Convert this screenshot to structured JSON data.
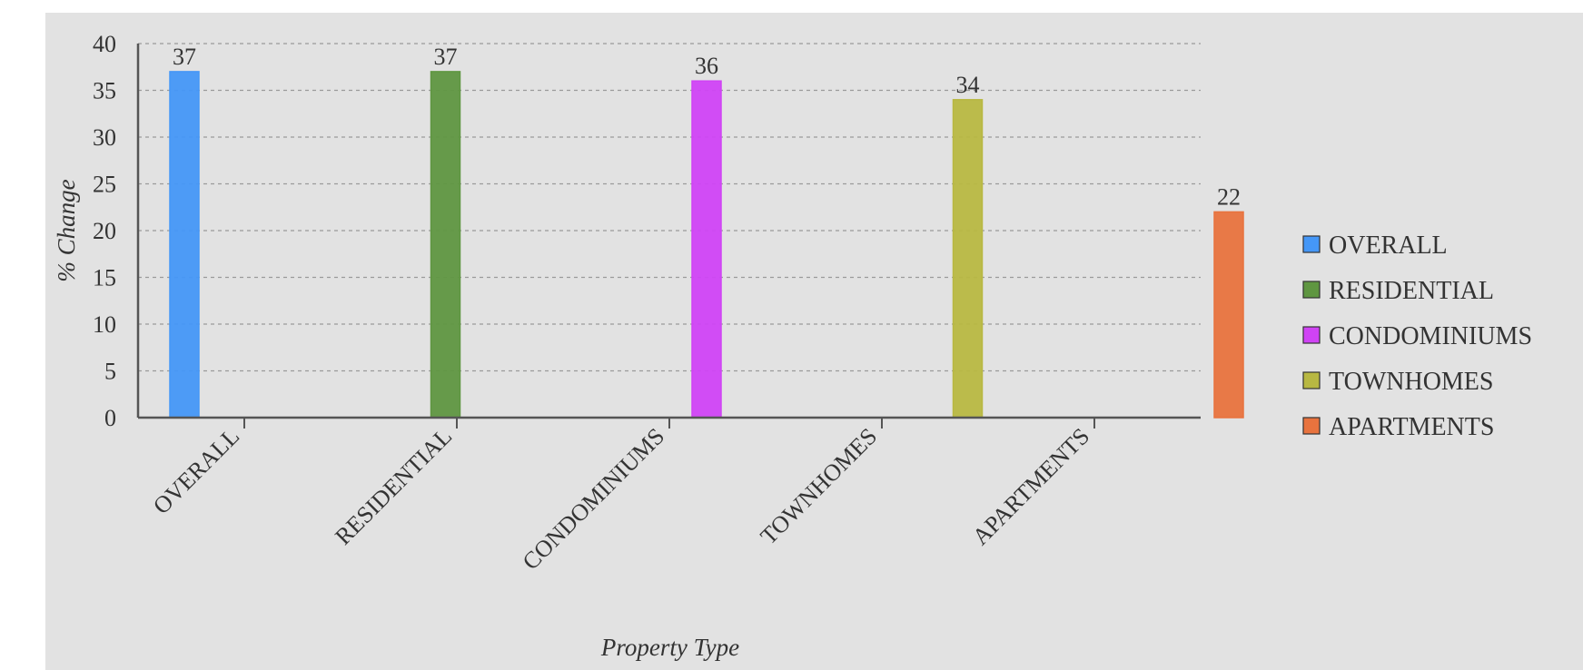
{
  "chart_data": {
    "type": "bar",
    "categories": [
      "OVERALL",
      "RESIDENTIAL",
      "CONDOMINIUMS",
      "TOWNHOMES",
      "APARTMENTS"
    ],
    "series": [
      {
        "name": "OVERALL",
        "values": [
          37,
          null,
          null,
          null,
          null
        ],
        "color": "#4597f7"
      },
      {
        "name": "RESIDENTIAL",
        "values": [
          null,
          37,
          null,
          null,
          null
        ],
        "color": "#5f9641"
      },
      {
        "name": "CONDOMINIUMS",
        "values": [
          null,
          null,
          36,
          null,
          null
        ],
        "color": "#d043f5"
      },
      {
        "name": "TOWNHOMES",
        "values": [
          null,
          null,
          null,
          34,
          null
        ],
        "color": "#b8b842"
      },
      {
        "name": "APARTMENTS",
        "values": [
          null,
          null,
          null,
          null,
          22
        ],
        "color": "#e8733e"
      }
    ],
    "data_labels": [
      "37",
      "37",
      "36",
      "34",
      "22"
    ],
    "title": "",
    "xlabel": "Property Type",
    "ylabel": "% Change",
    "ylim": [
      0,
      40
    ],
    "yticks": [
      0,
      5,
      10,
      15,
      20,
      25,
      30,
      35,
      40
    ],
    "grid": "horizontal-dashed",
    "legend_position": "right"
  }
}
